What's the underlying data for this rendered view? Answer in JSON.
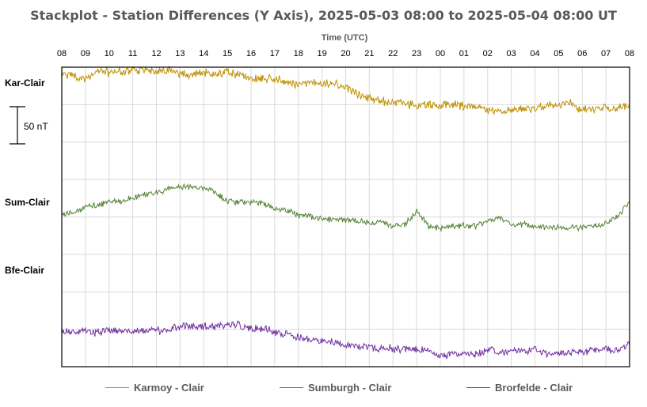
{
  "chart_data": {
    "type": "line",
    "title": "Stackplot - Station Differences (Y Axis),  2025-05-03 08:00 to 2025-05-04 08:00 UT",
    "xlabel": "Time (UTC)",
    "x_ticks": [
      "08",
      "09",
      "10",
      "11",
      "12",
      "13",
      "14",
      "15",
      "16",
      "17",
      "18",
      "19",
      "20",
      "21",
      "22",
      "23",
      "00",
      "01",
      "02",
      "03",
      "04",
      "05",
      "06",
      "07",
      "08"
    ],
    "scale_bar": "50 nT",
    "grid": true,
    "legend_position": "bottom",
    "series": [
      {
        "name": "Karmoy - Clair",
        "axis_label": "Kar-Clair",
        "color": "#BF9000",
        "hours": [
          0,
          0.5,
          1,
          1.5,
          2,
          2.5,
          3,
          3.5,
          4,
          4.5,
          5,
          5.5,
          6,
          6.5,
          7,
          7.5,
          8,
          8.5,
          9,
          9.5,
          10,
          10.5,
          11,
          11.5,
          12,
          12.5,
          13,
          13.5,
          14,
          14.5,
          15,
          15.5,
          16,
          16.5,
          17,
          17.5,
          18,
          18.5,
          19,
          19.5,
          20,
          20.5,
          21,
          21.5,
          22,
          22.5,
          23,
          23.5,
          24
        ],
        "values": [
          91,
          90,
          86,
          95,
          94,
          94,
          98,
          97,
          96,
          97,
          91,
          92,
          93,
          91,
          96,
          91,
          86,
          86,
          86,
          81,
          78,
          79,
          79,
          78,
          74,
          66,
          60,
          55,
          54,
          51,
          50,
          50,
          49,
          50,
          49,
          48,
          43,
          43,
          45,
          45,
          44,
          50,
          50,
          52,
          44,
          46,
          46,
          47,
          48
        ]
      },
      {
        "name": "Sumburgh - Clair",
        "axis_label": "Sum-Clair",
        "color": "#548235",
        "hours": [
          0,
          0.5,
          1,
          1.5,
          2,
          2.5,
          3,
          3.5,
          4,
          4.5,
          5,
          5.5,
          6,
          6.5,
          7,
          7.5,
          8,
          8.5,
          9,
          9.5,
          10,
          10.5,
          11,
          11.5,
          12,
          12.5,
          13,
          13.5,
          14,
          14.5,
          15,
          15.5,
          16,
          16.5,
          17,
          17.5,
          18,
          18.5,
          19,
          19.5,
          20,
          20.5,
          21,
          21.5,
          22,
          22.5,
          23,
          23.5,
          24
        ],
        "values": [
          50,
          52,
          60,
          62,
          66,
          68,
          72,
          76,
          78,
          84,
          87,
          86,
          85,
          80,
          67,
          66,
          66,
          65,
          58,
          55,
          49,
          47,
          44,
          43,
          42,
          41,
          39,
          39,
          34,
          36,
          54,
          34,
          31,
          34,
          35,
          34,
          42,
          46,
          36,
          37,
          34,
          33,
          32,
          34,
          32,
          35,
          38,
          46,
          68
        ]
      },
      {
        "name": "Brorfelde - Clair",
        "axis_label": "Bfe-Clair",
        "color": "#7030A0",
        "hours": [
          0,
          0.5,
          1,
          1.5,
          2,
          2.5,
          3,
          3.5,
          4,
          4.5,
          5,
          5.5,
          6,
          6.5,
          7,
          7.5,
          8,
          8.5,
          9,
          9.5,
          10,
          10.5,
          11,
          11.5,
          12,
          12.5,
          13,
          13.5,
          14,
          14.5,
          15,
          15.5,
          16,
          16.5,
          17,
          17.5,
          18,
          18.5,
          19,
          19.5,
          20,
          20.5,
          21,
          21.5,
          22,
          22.5,
          23,
          23.5,
          24
        ],
        "values": [
          22,
          21,
          22,
          21,
          23,
          24,
          22,
          23,
          24,
          24,
          29,
          29,
          29,
          28,
          31,
          31,
          25,
          26,
          22,
          19,
          13,
          11,
          9,
          6,
          3,
          2,
          0,
          0,
          -1,
          -2,
          -3,
          -4,
          -11,
          -8,
          -10,
          -9,
          -2,
          -5,
          -4,
          -6,
          -3,
          -8,
          -7,
          -5,
          -6,
          -4,
          -2,
          -3,
          3
        ]
      }
    ]
  }
}
